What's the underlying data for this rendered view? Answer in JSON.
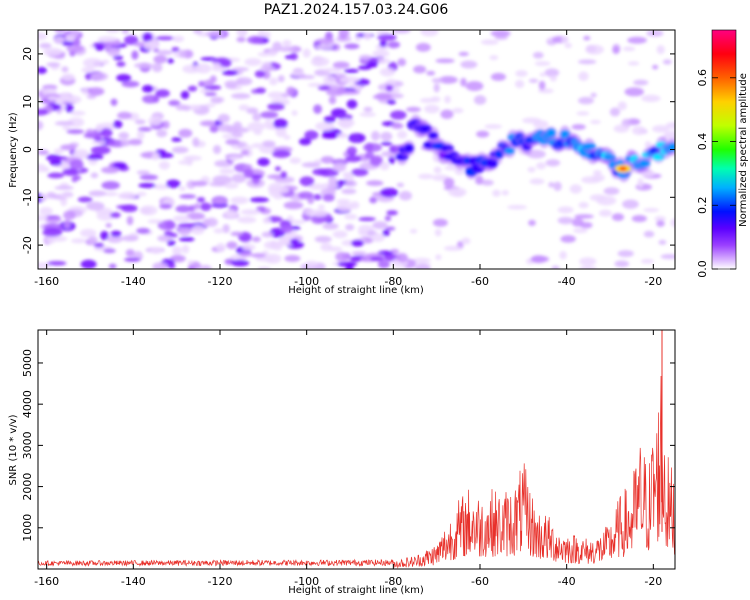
{
  "title": "PAZ1.2024.157.03.24.G06",
  "chart_data": [
    {
      "type": "heatmap",
      "xlabel": "Height of straight line (km)",
      "ylabel": "Frequency (Hz)",
      "xlim": [
        -162,
        -15
      ],
      "ylim": [
        -25,
        25
      ],
      "xticks": [
        "-160",
        "-140",
        "-120",
        "-100",
        "-80",
        "-60",
        "-40",
        "-20"
      ],
      "xtick_values": [
        -160,
        -140,
        -120,
        -100,
        -80,
        -60,
        -40,
        -20
      ],
      "yticks": [
        "-20",
        "-10",
        "0",
        "10",
        "20"
      ],
      "ytick_values": [
        -20,
        -10,
        0,
        10,
        20
      ],
      "colorbar": {
        "label": "Normalized spectral amplitude",
        "range": [
          0,
          0.75
        ],
        "ticks": [
          "0.0",
          "0.2",
          "0.4",
          "0.6"
        ],
        "tick_values": [
          0.0,
          0.2,
          0.4,
          0.6
        ],
        "colormap": "gist_rainbow",
        "colors": [
          "#ffffff",
          "#c080ff",
          "#6a00ff",
          "#0000ff",
          "#00e0ff",
          "#00ff60",
          "#a0ff00",
          "#ffff00",
          "#ff9000",
          "#ff0000",
          "#ff0070"
        ]
      },
      "ridge": {
        "description_points_x": [
          -76,
          -70,
          -65,
          -60,
          -55,
          -50,
          -45,
          -40,
          -35,
          -30,
          -27,
          -22,
          -18
        ],
        "description_points_y": [
          6,
          1,
          -3,
          -4,
          0,
          2,
          2,
          2,
          0,
          -3,
          -4,
          -2,
          0
        ],
        "peak_x": -27,
        "peak_y": -4
      }
    },
    {
      "type": "line",
      "xlabel": "Height of straight line (km)",
      "ylabel": "SNR (10 * v/v)",
      "xlim": [
        -162,
        -15
      ],
      "ylim": [
        0,
        5800
      ],
      "xticks": [
        "-160",
        "-140",
        "-120",
        "-100",
        "-80",
        "-60",
        "-40",
        "-20"
      ],
      "xtick_values": [
        -160,
        -140,
        -120,
        -100,
        -80,
        -60,
        -40,
        -20
      ],
      "yticks": [
        "1000",
        "2000",
        "3000",
        "4000",
        "5000"
      ],
      "ytick_values": [
        1000,
        2000,
        3000,
        4000,
        5000
      ],
      "color": "#e8302a",
      "envelope_x": [
        -162,
        -80,
        -75,
        -70,
        -67,
        -65,
        -62,
        -60,
        -58,
        -55,
        -52,
        -50,
        -47,
        -45,
        -42,
        -40,
        -37,
        -35,
        -32,
        -30,
        -28,
        -25,
        -23,
        -21,
        -20,
        -19,
        -18,
        -17,
        -16,
        -15
      ],
      "envelope_max": [
        200,
        230,
        330,
        650,
        1300,
        1700,
        2100,
        1800,
        2000,
        1900,
        2100,
        2650,
        1500,
        1400,
        1050,
        900,
        850,
        750,
        900,
        1150,
        1750,
        2200,
        3200,
        2600,
        3700,
        4000,
        5800,
        2900,
        2600,
        2300
      ]
    }
  ]
}
